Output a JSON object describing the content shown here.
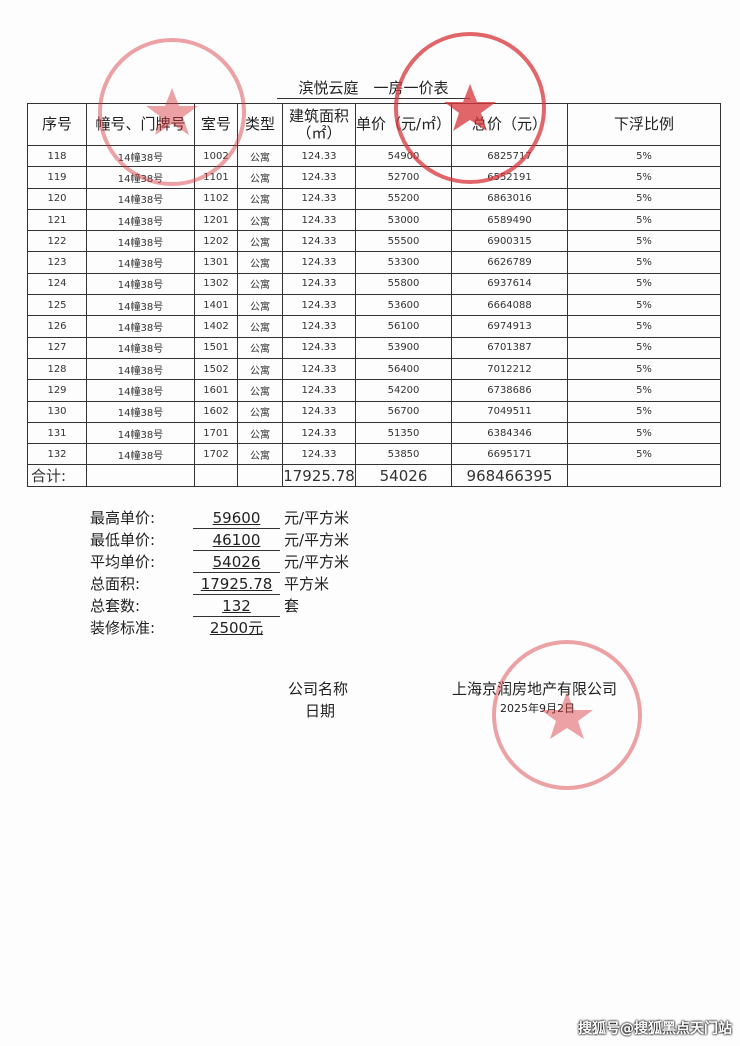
{
  "title": "滨悦云庭　一房一价表",
  "table": {
    "headers": [
      "序号",
      "幢号、门牌号",
      "室号",
      "类型",
      "建筑面积（㎡）",
      "单价（元/㎡）",
      "总价（元）",
      "下浮比例"
    ],
    "rows": [
      [
        "118",
        "14幢38号",
        "1002",
        "公寓",
        "124.33",
        "54900",
        "6825717",
        "5%"
      ],
      [
        "119",
        "14幢38号",
        "1101",
        "公寓",
        "124.33",
        "52700",
        "6552191",
        "5%"
      ],
      [
        "120",
        "14幢38号",
        "1102",
        "公寓",
        "124.33",
        "55200",
        "6863016",
        "5%"
      ],
      [
        "121",
        "14幢38号",
        "1201",
        "公寓",
        "124.33",
        "53000",
        "6589490",
        "5%"
      ],
      [
        "122",
        "14幢38号",
        "1202",
        "公寓",
        "124.33",
        "55500",
        "6900315",
        "5%"
      ],
      [
        "123",
        "14幢38号",
        "1301",
        "公寓",
        "124.33",
        "53300",
        "6626789",
        "5%"
      ],
      [
        "124",
        "14幢38号",
        "1302",
        "公寓",
        "124.33",
        "55800",
        "6937614",
        "5%"
      ],
      [
        "125",
        "14幢38号",
        "1401",
        "公寓",
        "124.33",
        "53600",
        "6664088",
        "5%"
      ],
      [
        "126",
        "14幢38号",
        "1402",
        "公寓",
        "124.33",
        "56100",
        "6974913",
        "5%"
      ],
      [
        "127",
        "14幢38号",
        "1501",
        "公寓",
        "124.33",
        "53900",
        "6701387",
        "5%"
      ],
      [
        "128",
        "14幢38号",
        "1502",
        "公寓",
        "124.33",
        "56400",
        "7012212",
        "5%"
      ],
      [
        "129",
        "14幢38号",
        "1601",
        "公寓",
        "124.33",
        "54200",
        "6738686",
        "5%"
      ],
      [
        "130",
        "14幢38号",
        "1602",
        "公寓",
        "124.33",
        "56700",
        "7049511",
        "5%"
      ],
      [
        "131",
        "14幢38号",
        "1701",
        "公寓",
        "124.33",
        "51350",
        "6384346",
        "5%"
      ],
      [
        "132",
        "14幢38号",
        "1702",
        "公寓",
        "124.33",
        "53850",
        "6695171",
        "5%"
      ]
    ],
    "total": {
      "label": "合计:",
      "area": "17925.78",
      "unit_price": "54026",
      "total_price": "968466395"
    }
  },
  "summary": [
    {
      "label": "最高单价:",
      "value": "59600",
      "unit": "元/平方米"
    },
    {
      "label": "最低单价:",
      "value": "46100",
      "unit": "元/平方米"
    },
    {
      "label": "平均单价:",
      "value": "54026",
      "unit": "元/平方米"
    },
    {
      "label": "总面积:",
      "value": "17925.78",
      "unit": "平方米"
    },
    {
      "label": "总套数:",
      "value": "132",
      "unit": "套"
    },
    {
      "label": "装修标准:",
      "value": "2500元",
      "unit": ""
    }
  ],
  "signature": {
    "company_label": "公司名称",
    "date_label": "日期",
    "company": "上海京润房地产有限公司",
    "date": "2025年9月2日"
  },
  "watermark": "搜狐号@搜狐黑点天门站",
  "colors": {
    "stamp": "#d8343a",
    "stamp_light": "#e58a92"
  }
}
